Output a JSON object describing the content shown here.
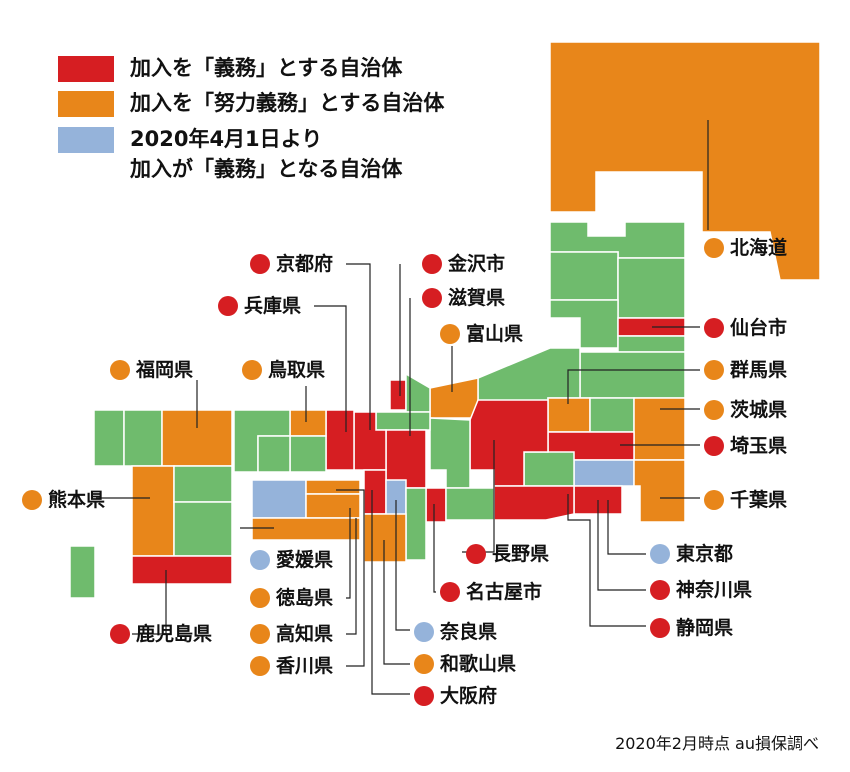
{
  "colors": {
    "mandatory": "#d61e22",
    "effort": "#e8861a",
    "from_april_2020": "#95b3da",
    "none": "#6fbb6d"
  },
  "legend": [
    {
      "key": "mandatory",
      "text": "加入を「義務」とする自治体"
    },
    {
      "key": "effort",
      "text": "加入を「努力義務」とする自治体"
    },
    {
      "key": "from_april_2020",
      "text": "2020年4月1日より",
      "text2": "加入が「義務」となる自治体"
    }
  ],
  "labels": [
    {
      "id": "hokkaido",
      "text": "北海道",
      "status": "effort"
    },
    {
      "id": "sendai",
      "text": "仙台市",
      "status": "mandatory"
    },
    {
      "id": "gunma",
      "text": "群馬県",
      "status": "effort"
    },
    {
      "id": "ibaraki",
      "text": "茨城県",
      "status": "effort"
    },
    {
      "id": "saitama",
      "text": "埼玉県",
      "status": "mandatory"
    },
    {
      "id": "chiba",
      "text": "千葉県",
      "status": "effort"
    },
    {
      "id": "tokyo",
      "text": "東京都",
      "status": "from_april_2020"
    },
    {
      "id": "kanagawa",
      "text": "神奈川県",
      "status": "mandatory"
    },
    {
      "id": "shizuoka",
      "text": "静岡県",
      "status": "mandatory"
    },
    {
      "id": "nagano",
      "text": "長野県",
      "status": "mandatory"
    },
    {
      "id": "nagoya",
      "text": "名古屋市",
      "status": "mandatory"
    },
    {
      "id": "nara",
      "text": "奈良県",
      "status": "from_april_2020"
    },
    {
      "id": "wakayama",
      "text": "和歌山県",
      "status": "effort"
    },
    {
      "id": "osaka",
      "text": "大阪府",
      "status": "mandatory"
    },
    {
      "id": "kyoto",
      "text": "京都府",
      "status": "mandatory"
    },
    {
      "id": "kanazawa",
      "text": "金沢市",
      "status": "mandatory"
    },
    {
      "id": "hyogo",
      "text": "兵庫県",
      "status": "mandatory"
    },
    {
      "id": "shiga",
      "text": "滋賀県",
      "status": "mandatory"
    },
    {
      "id": "toyama",
      "text": "富山県",
      "status": "effort"
    },
    {
      "id": "fukuoka",
      "text": "福岡県",
      "status": "effort"
    },
    {
      "id": "tottori",
      "text": "鳥取県",
      "status": "effort"
    },
    {
      "id": "kumamoto",
      "text": "熊本県",
      "status": "effort"
    },
    {
      "id": "kagoshima",
      "text": "鹿児島県",
      "status": "mandatory"
    },
    {
      "id": "ehime",
      "text": "愛媛県",
      "status": "from_april_2020"
    },
    {
      "id": "tokushima",
      "text": "徳島県",
      "status": "effort"
    },
    {
      "id": "kochi",
      "text": "高知県",
      "status": "effort"
    },
    {
      "id": "kagawa",
      "text": "香川県",
      "status": "effort"
    }
  ],
  "source": "2020年2月時点 au損保調べ"
}
